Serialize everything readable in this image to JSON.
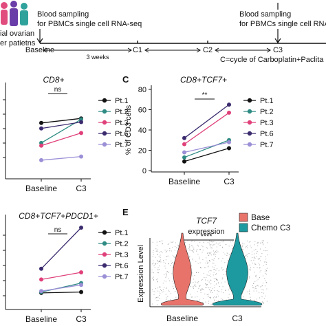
{
  "timeline": {
    "left_label_1": "Blood sampling",
    "left_label_2": "for PBMCs single cell RNA-seq",
    "right_label_1": "Blood sampling",
    "right_label_2": "for PBMCs single cell RNA",
    "patients_label_1": "ial ovarian",
    "patients_label_2": "er patietns",
    "baseline": "Baseline",
    "c1": "C1",
    "c2": "C2",
    "c3": "C3",
    "interval": "3 weeks",
    "cycle_note": "C=cycle of Carboplatin+Paclita"
  },
  "chart_data": [
    {
      "type": "line",
      "title": "CD8+",
      "categories": [
        "Baseline",
        "C3"
      ],
      "ylim": [
        0,
        100
      ],
      "significance": "ns",
      "series": [
        {
          "name": "Pt.1",
          "values": [
            60,
            65
          ],
          "color": "#111111"
        },
        {
          "name": "Pt.2",
          "values": [
            38,
            64
          ],
          "color": "#2e8b83"
        },
        {
          "name": "Pt.3",
          "values": [
            35,
            49
          ],
          "color": "#e0407a"
        },
        {
          "name": "Pt.6",
          "values": [
            54,
            61
          ],
          "color": "#3b2b6e"
        },
        {
          "name": "Pt.7",
          "values": [
            19,
            23
          ],
          "color": "#9b8fd6"
        }
      ]
    },
    {
      "type": "line",
      "panel": "C",
      "title": "CD8+TCF7+",
      "ylabel": "% of CD3 cells",
      "yticks": [
        0,
        20,
        40,
        60,
        80
      ],
      "categories": [
        "Baseline",
        "C3"
      ],
      "ylim": [
        0,
        80
      ],
      "significance": "**",
      "series": [
        {
          "name": "Pt.1",
          "values": [
            9,
            22
          ],
          "color": "#111111"
        },
        {
          "name": "Pt.2",
          "values": [
            13,
            30
          ],
          "color": "#2e8b83"
        },
        {
          "name": "Pt.3",
          "values": [
            26,
            57
          ],
          "color": "#e0407a"
        },
        {
          "name": "Pt.6",
          "values": [
            32,
            65
          ],
          "color": "#3b2b6e"
        },
        {
          "name": "Pt.7",
          "values": [
            18,
            28
          ],
          "color": "#9b8fd6"
        }
      ]
    },
    {
      "type": "line",
      "title": "CD8+TCF7+PDCD1+",
      "categories": [
        "Baseline",
        "C3"
      ],
      "ylim": [
        0,
        100
      ],
      "significance": "ns",
      "series": [
        {
          "name": "Pt.1",
          "values": [
            17,
            18
          ],
          "color": "#111111"
        },
        {
          "name": "Pt.2",
          "values": [
            18,
            28
          ],
          "color": "#2e8b83"
        },
        {
          "name": "Pt.3",
          "values": [
            32,
            40
          ],
          "color": "#e0407a"
        },
        {
          "name": "Pt.6",
          "values": [
            44,
            90
          ],
          "color": "#3b2b6e"
        },
        {
          "name": "Pt.7",
          "values": [
            19,
            26
          ],
          "color": "#9b8fd6"
        }
      ]
    }
  ],
  "violin": {
    "panel": "E",
    "title": "TCF7",
    "subtitle": "expression",
    "ylabel": "Expression Level",
    "significance": "****",
    "categories": [
      "Baseline",
      "C3"
    ],
    "legend": [
      {
        "name": "Base",
        "color": "#e8736b"
      },
      {
        "name": "Chemo C3",
        "color": "#1d9aa0"
      }
    ]
  }
}
